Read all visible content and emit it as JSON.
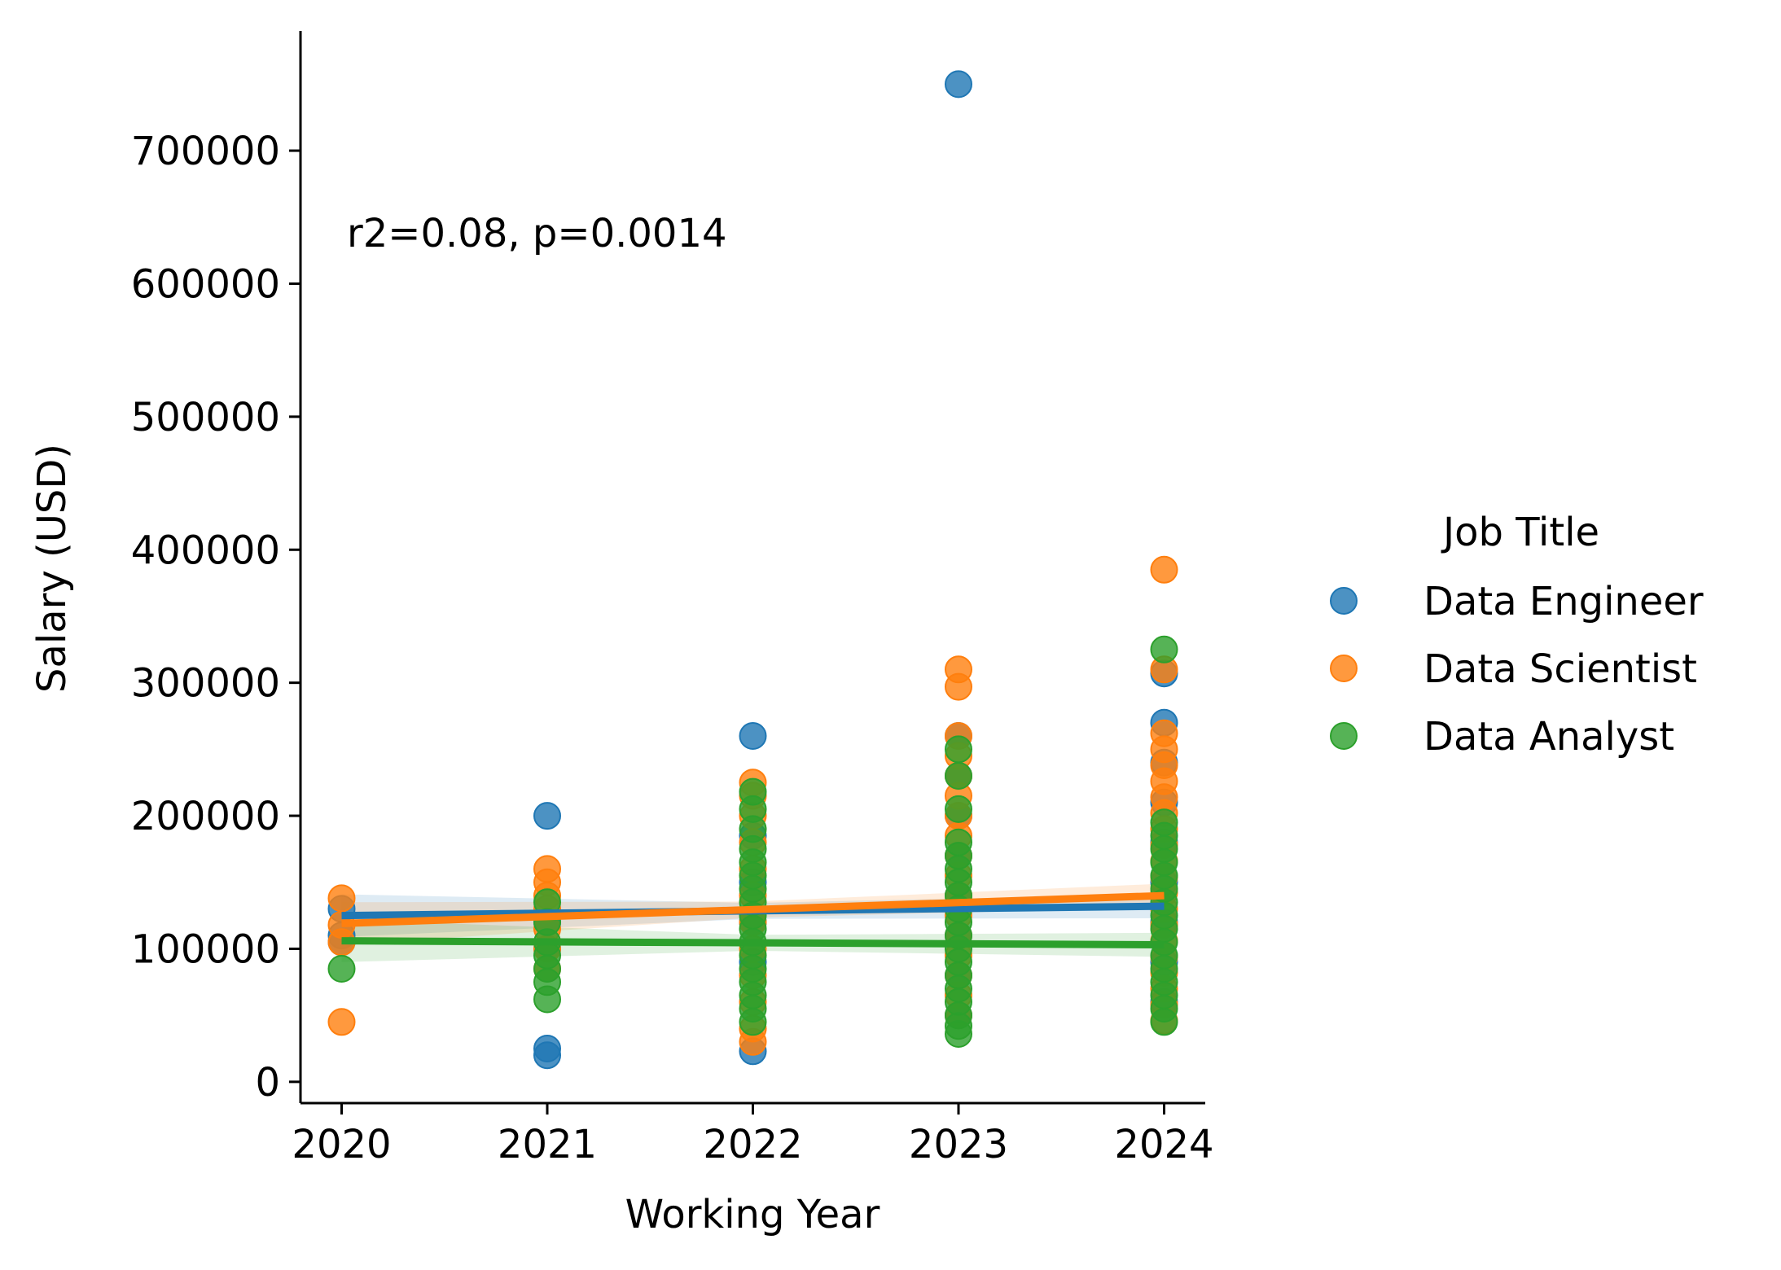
{
  "chart_data": {
    "type": "scatter",
    "xlabel": "Working Year",
    "ylabel": "Salary (USD)",
    "annotation": "r2=0.08, p=0.0014",
    "x_ticks": [
      2020,
      2021,
      2022,
      2023,
      2024
    ],
    "y_ticks": [
      0,
      100000,
      200000,
      300000,
      400000,
      500000,
      600000,
      700000
    ],
    "xlim": [
      2019.8,
      2024.2
    ],
    "ylim": [
      -16000,
      790000
    ],
    "grid": false,
    "legend": {
      "title": "Job Title",
      "placement": "right"
    },
    "series": [
      {
        "name": "Data Engineer",
        "color": "#1f77b4",
        "fit": [
          [
            2020,
            125000
          ],
          [
            2024,
            132000
          ]
        ],
        "points": [
          {
            "x": 2020,
            "y": 130000
          },
          {
            "x": 2020,
            "y": 110000
          },
          {
            "x": 2020,
            "y": 105000
          },
          {
            "x": 2021,
            "y": 200000
          },
          {
            "x": 2021,
            "y": 25000
          },
          {
            "x": 2021,
            "y": 20000
          },
          {
            "x": 2021,
            "y": 120000
          },
          {
            "x": 2021,
            "y": 100000
          },
          {
            "x": 2022,
            "y": 260000
          },
          {
            "x": 2022,
            "y": 185000
          },
          {
            "x": 2022,
            "y": 150000
          },
          {
            "x": 2022,
            "y": 120000
          },
          {
            "x": 2022,
            "y": 90000
          },
          {
            "x": 2022,
            "y": 23000
          },
          {
            "x": 2023,
            "y": 750000
          },
          {
            "x": 2023,
            "y": 260000
          },
          {
            "x": 2023,
            "y": 230000
          },
          {
            "x": 2023,
            "y": 200000
          },
          {
            "x": 2023,
            "y": 170000
          },
          {
            "x": 2023,
            "y": 140000
          },
          {
            "x": 2023,
            "y": 110000
          },
          {
            "x": 2023,
            "y": 80000
          },
          {
            "x": 2023,
            "y": 50000
          },
          {
            "x": 2024,
            "y": 307000
          },
          {
            "x": 2024,
            "y": 270000
          },
          {
            "x": 2024,
            "y": 240000
          },
          {
            "x": 2024,
            "y": 210000
          },
          {
            "x": 2024,
            "y": 180000
          },
          {
            "x": 2024,
            "y": 150000
          },
          {
            "x": 2024,
            "y": 120000
          },
          {
            "x": 2024,
            "y": 90000
          },
          {
            "x": 2024,
            "y": 60000
          }
        ]
      },
      {
        "name": "Data Scientist",
        "color": "#ff7f0e",
        "fit": [
          [
            2020,
            119000
          ],
          [
            2024,
            140000
          ]
        ],
        "points": [
          {
            "x": 2020,
            "y": 138000
          },
          {
            "x": 2020,
            "y": 118000
          },
          {
            "x": 2020,
            "y": 105000
          },
          {
            "x": 2020,
            "y": 45000
          },
          {
            "x": 2021,
            "y": 160000
          },
          {
            "x": 2021,
            "y": 150000
          },
          {
            "x": 2021,
            "y": 140000
          },
          {
            "x": 2021,
            "y": 130000
          },
          {
            "x": 2021,
            "y": 115000
          },
          {
            "x": 2021,
            "y": 100000
          },
          {
            "x": 2021,
            "y": 85000
          },
          {
            "x": 2022,
            "y": 225000
          },
          {
            "x": 2022,
            "y": 215000
          },
          {
            "x": 2022,
            "y": 200000
          },
          {
            "x": 2022,
            "y": 180000
          },
          {
            "x": 2022,
            "y": 160000
          },
          {
            "x": 2022,
            "y": 140000
          },
          {
            "x": 2022,
            "y": 120000
          },
          {
            "x": 2022,
            "y": 100000
          },
          {
            "x": 2022,
            "y": 80000
          },
          {
            "x": 2022,
            "y": 60000
          },
          {
            "x": 2022,
            "y": 40000
          },
          {
            "x": 2022,
            "y": 30000
          },
          {
            "x": 2023,
            "y": 310000
          },
          {
            "x": 2023,
            "y": 297000
          },
          {
            "x": 2023,
            "y": 260000
          },
          {
            "x": 2023,
            "y": 245000
          },
          {
            "x": 2023,
            "y": 230000
          },
          {
            "x": 2023,
            "y": 215000
          },
          {
            "x": 2023,
            "y": 200000
          },
          {
            "x": 2023,
            "y": 185000
          },
          {
            "x": 2023,
            "y": 170000
          },
          {
            "x": 2023,
            "y": 155000
          },
          {
            "x": 2023,
            "y": 140000
          },
          {
            "x": 2023,
            "y": 125000
          },
          {
            "x": 2023,
            "y": 110000
          },
          {
            "x": 2023,
            "y": 95000
          },
          {
            "x": 2023,
            "y": 80000
          },
          {
            "x": 2023,
            "y": 65000
          },
          {
            "x": 2023,
            "y": 50000
          },
          {
            "x": 2024,
            "y": 385000
          },
          {
            "x": 2024,
            "y": 310000
          },
          {
            "x": 2024,
            "y": 262000
          },
          {
            "x": 2024,
            "y": 250000
          },
          {
            "x": 2024,
            "y": 238000
          },
          {
            "x": 2024,
            "y": 226000
          },
          {
            "x": 2024,
            "y": 214000
          },
          {
            "x": 2024,
            "y": 202000
          },
          {
            "x": 2024,
            "y": 190000
          },
          {
            "x": 2024,
            "y": 178000
          },
          {
            "x": 2024,
            "y": 166000
          },
          {
            "x": 2024,
            "y": 154000
          },
          {
            "x": 2024,
            "y": 142000
          },
          {
            "x": 2024,
            "y": 130000
          },
          {
            "x": 2024,
            "y": 118000
          },
          {
            "x": 2024,
            "y": 106000
          },
          {
            "x": 2024,
            "y": 94000
          },
          {
            "x": 2024,
            "y": 82000
          },
          {
            "x": 2024,
            "y": 70000
          },
          {
            "x": 2024,
            "y": 58000
          },
          {
            "x": 2024,
            "y": 46000
          }
        ]
      },
      {
        "name": "Data Analyst",
        "color": "#2ca02c",
        "fit": [
          [
            2020,
            106000
          ],
          [
            2024,
            103000
          ]
        ],
        "points": [
          {
            "x": 2020,
            "y": 85000
          },
          {
            "x": 2021,
            "y": 135000
          },
          {
            "x": 2021,
            "y": 120000
          },
          {
            "x": 2021,
            "y": 105000
          },
          {
            "x": 2021,
            "y": 95000
          },
          {
            "x": 2021,
            "y": 85000
          },
          {
            "x": 2021,
            "y": 75000
          },
          {
            "x": 2021,
            "y": 62000
          },
          {
            "x": 2022,
            "y": 218000
          },
          {
            "x": 2022,
            "y": 205000
          },
          {
            "x": 2022,
            "y": 190000
          },
          {
            "x": 2022,
            "y": 175000
          },
          {
            "x": 2022,
            "y": 165000
          },
          {
            "x": 2022,
            "y": 155000
          },
          {
            "x": 2022,
            "y": 145000
          },
          {
            "x": 2022,
            "y": 135000
          },
          {
            "x": 2022,
            "y": 125000
          },
          {
            "x": 2022,
            "y": 115000
          },
          {
            "x": 2022,
            "y": 105000
          },
          {
            "x": 2022,
            "y": 95000
          },
          {
            "x": 2022,
            "y": 85000
          },
          {
            "x": 2022,
            "y": 75000
          },
          {
            "x": 2022,
            "y": 65000
          },
          {
            "x": 2022,
            "y": 55000
          },
          {
            "x": 2022,
            "y": 45000
          },
          {
            "x": 2023,
            "y": 250000
          },
          {
            "x": 2023,
            "y": 230000
          },
          {
            "x": 2023,
            "y": 205000
          },
          {
            "x": 2023,
            "y": 180000
          },
          {
            "x": 2023,
            "y": 170000
          },
          {
            "x": 2023,
            "y": 160000
          },
          {
            "x": 2023,
            "y": 150000
          },
          {
            "x": 2023,
            "y": 140000
          },
          {
            "x": 2023,
            "y": 130000
          },
          {
            "x": 2023,
            "y": 120000
          },
          {
            "x": 2023,
            "y": 110000
          },
          {
            "x": 2023,
            "y": 100000
          },
          {
            "x": 2023,
            "y": 90000
          },
          {
            "x": 2023,
            "y": 80000
          },
          {
            "x": 2023,
            "y": 70000
          },
          {
            "x": 2023,
            "y": 60000
          },
          {
            "x": 2023,
            "y": 50000
          },
          {
            "x": 2023,
            "y": 42000
          },
          {
            "x": 2023,
            "y": 36000
          },
          {
            "x": 2024,
            "y": 325000
          },
          {
            "x": 2024,
            "y": 195000
          },
          {
            "x": 2024,
            "y": 185000
          },
          {
            "x": 2024,
            "y": 175000
          },
          {
            "x": 2024,
            "y": 165000
          },
          {
            "x": 2024,
            "y": 155000
          },
          {
            "x": 2024,
            "y": 145000
          },
          {
            "x": 2024,
            "y": 135000
          },
          {
            "x": 2024,
            "y": 125000
          },
          {
            "x": 2024,
            "y": 115000
          },
          {
            "x": 2024,
            "y": 105000
          },
          {
            "x": 2024,
            "y": 95000
          },
          {
            "x": 2024,
            "y": 85000
          },
          {
            "x": 2024,
            "y": 75000
          },
          {
            "x": 2024,
            "y": 65000
          },
          {
            "x": 2024,
            "y": 55000
          },
          {
            "x": 2024,
            "y": 45000
          }
        ]
      }
    ]
  }
}
